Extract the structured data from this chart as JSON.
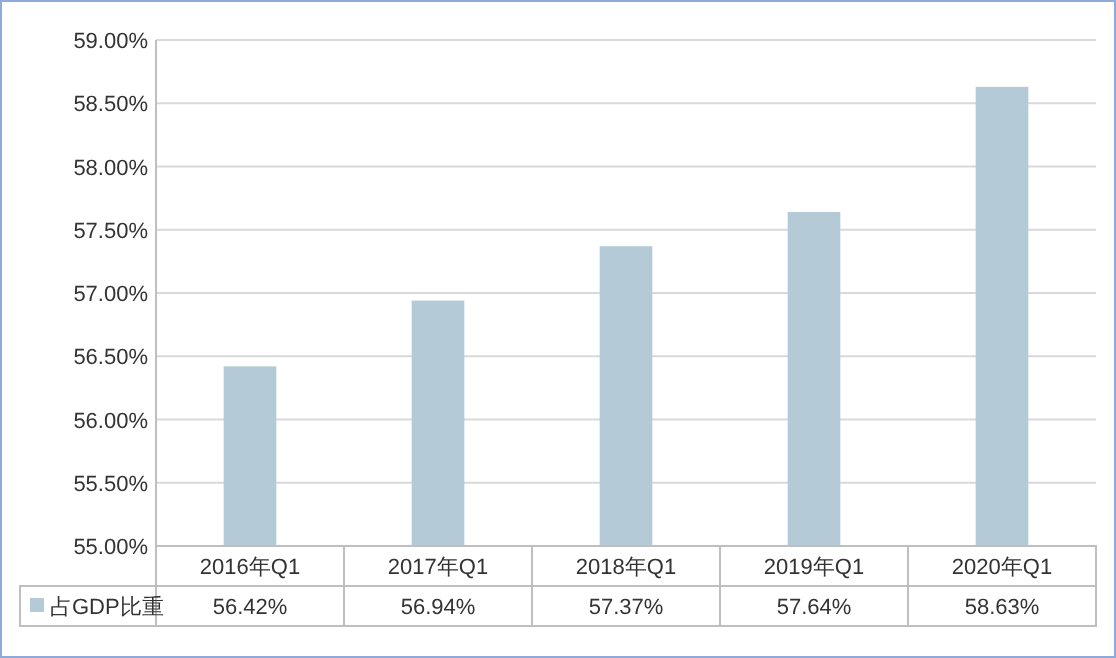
{
  "chart_data": {
    "type": "bar",
    "categories": [
      "2016年Q1",
      "2017年Q1",
      "2018年Q1",
      "2019年Q1",
      "2020年Q1"
    ],
    "series": [
      {
        "name": "占GDP比重",
        "color": "#b4cad6",
        "values": [
          56.42,
          56.94,
          57.37,
          57.64,
          58.63
        ],
        "value_labels": [
          "56.42%",
          "56.94%",
          "57.37%",
          "57.64%",
          "58.63%"
        ]
      }
    ],
    "ylim": [
      55,
      59
    ],
    "yticks": [
      {
        "value": 55,
        "label": "55.00%"
      },
      {
        "value": 55.5,
        "label": "55.50%"
      },
      {
        "value": 56,
        "label": "56.00%"
      },
      {
        "value": 56.5,
        "label": "56.50%"
      },
      {
        "value": 57,
        "label": "57.00%"
      },
      {
        "value": 57.5,
        "label": "57.50%"
      },
      {
        "value": 58,
        "label": "58.00%"
      },
      {
        "value": 58.5,
        "label": "58.50%"
      },
      {
        "value": 59,
        "label": "59.00%"
      }
    ],
    "grid": "y",
    "legend": "bottom"
  }
}
